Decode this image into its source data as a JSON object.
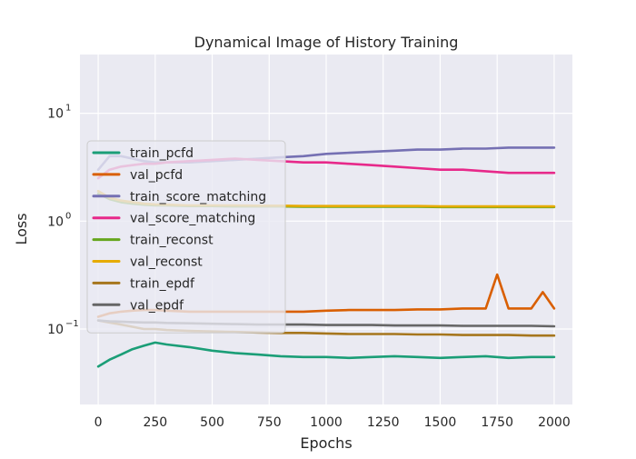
{
  "chart_data": {
    "type": "line",
    "title": "Dynamical Image of History Training",
    "xlabel": "Epochs",
    "ylabel": "Loss",
    "y_scale": "log",
    "xlim": [
      -80,
      2080
    ],
    "ylim": [
      0.02,
      35
    ],
    "grid": true,
    "legend_position": "left",
    "x_ticks": [
      0,
      250,
      500,
      750,
      1000,
      1250,
      1500,
      1750,
      2000
    ],
    "x_tick_labels": [
      "0",
      "250",
      "500",
      "750",
      "1000",
      "1250",
      "1500",
      "1750",
      "2000"
    ],
    "y_ticks": [
      0.1,
      1,
      10
    ],
    "y_tick_labels": [
      {
        "base": "10",
        "exp": "−1"
      },
      {
        "base": "10",
        "exp": "0"
      },
      {
        "base": "10",
        "exp": "1"
      }
    ],
    "series": [
      {
        "name": "train_pcfd",
        "color": "#1b9e77",
        "x": [
          0,
          50,
          100,
          150,
          200,
          250,
          300,
          400,
          500,
          600,
          700,
          800,
          900,
          1000,
          1100,
          1200,
          1300,
          1400,
          1500,
          1600,
          1700,
          1800,
          1900,
          2000
        ],
        "values": [
          0.045,
          0.052,
          0.058,
          0.065,
          0.07,
          0.075,
          0.072,
          0.068,
          0.063,
          0.06,
          0.058,
          0.056,
          0.055,
          0.055,
          0.054,
          0.055,
          0.056,
          0.055,
          0.054,
          0.055,
          0.056,
          0.054,
          0.055,
          0.055
        ]
      },
      {
        "name": "val_pcfd",
        "color": "#d95f02",
        "x": [
          0,
          50,
          100,
          150,
          200,
          250,
          300,
          400,
          500,
          600,
          700,
          800,
          900,
          1000,
          1100,
          1200,
          1300,
          1400,
          1500,
          1600,
          1700,
          1750,
          1800,
          1900,
          1950,
          2000
        ],
        "values": [
          0.13,
          0.14,
          0.145,
          0.148,
          0.15,
          0.15,
          0.148,
          0.145,
          0.145,
          0.145,
          0.145,
          0.145,
          0.145,
          0.148,
          0.15,
          0.15,
          0.15,
          0.152,
          0.152,
          0.155,
          0.155,
          0.32,
          0.155,
          0.155,
          0.22,
          0.155
        ]
      },
      {
        "name": "train_score_matching",
        "color": "#7570b3",
        "x": [
          0,
          50,
          100,
          150,
          200,
          250,
          300,
          400,
          500,
          600,
          700,
          800,
          900,
          1000,
          1100,
          1200,
          1300,
          1400,
          1500,
          1600,
          1700,
          1800,
          1900,
          2000
        ],
        "values": [
          3.0,
          4.0,
          4.0,
          3.8,
          3.6,
          3.5,
          3.5,
          3.5,
          3.6,
          3.7,
          3.8,
          3.9,
          4.0,
          4.2,
          4.3,
          4.4,
          4.5,
          4.6,
          4.6,
          4.7,
          4.7,
          4.8,
          4.8,
          4.8
        ]
      },
      {
        "name": "val_score_matching",
        "color": "#e7298a",
        "x": [
          0,
          50,
          100,
          150,
          200,
          250,
          300,
          400,
          500,
          600,
          700,
          800,
          900,
          1000,
          1100,
          1200,
          1300,
          1400,
          1500,
          1600,
          1700,
          1800,
          1900,
          2000
        ],
        "values": [
          2.5,
          3.0,
          3.2,
          3.3,
          3.4,
          3.4,
          3.5,
          3.6,
          3.7,
          3.8,
          3.7,
          3.6,
          3.5,
          3.5,
          3.4,
          3.3,
          3.2,
          3.1,
          3.0,
          3.0,
          2.9,
          2.8,
          2.8,
          2.8
        ]
      },
      {
        "name": "train_reconst",
        "color": "#66a61e",
        "x": [
          0,
          50,
          100,
          150,
          200,
          250,
          300,
          400,
          500,
          600,
          700,
          800,
          900,
          1000,
          1100,
          1200,
          1300,
          1400,
          1500,
          1600,
          1700,
          1800,
          1900,
          2000
        ],
        "values": [
          1.8,
          1.6,
          1.5,
          1.45,
          1.42,
          1.4,
          1.4,
          1.38,
          1.38,
          1.37,
          1.37,
          1.37,
          1.36,
          1.36,
          1.36,
          1.36,
          1.36,
          1.36,
          1.35,
          1.35,
          1.35,
          1.35,
          1.35,
          1.35
        ]
      },
      {
        "name": "val_reconst",
        "color": "#e6ab02",
        "x": [
          0,
          50,
          100,
          150,
          200,
          250,
          300,
          400,
          500,
          600,
          700,
          800,
          900,
          1000,
          1100,
          1200,
          1300,
          1400,
          1500,
          1600,
          1700,
          1800,
          1900,
          2000
        ],
        "values": [
          1.9,
          1.65,
          1.55,
          1.5,
          1.45,
          1.43,
          1.42,
          1.4,
          1.4,
          1.4,
          1.39,
          1.39,
          1.38,
          1.38,
          1.38,
          1.38,
          1.38,
          1.38,
          1.37,
          1.37,
          1.37,
          1.37,
          1.37,
          1.37
        ]
      },
      {
        "name": "train_epdf",
        "color": "#a6761d",
        "x": [
          0,
          50,
          100,
          150,
          200,
          250,
          300,
          400,
          500,
          600,
          700,
          800,
          900,
          1000,
          1100,
          1200,
          1300,
          1400,
          1500,
          1600,
          1700,
          1800,
          1900,
          2000
        ],
        "values": [
          0.12,
          0.115,
          0.11,
          0.105,
          0.1,
          0.1,
          0.098,
          0.096,
          0.095,
          0.094,
          0.093,
          0.092,
          0.092,
          0.091,
          0.09,
          0.09,
          0.09,
          0.089,
          0.089,
          0.088,
          0.088,
          0.088,
          0.087,
          0.087
        ]
      },
      {
        "name": "val_epdf",
        "color": "#666666",
        "x": [
          0,
          50,
          100,
          150,
          200,
          250,
          300,
          400,
          500,
          600,
          700,
          800,
          900,
          1000,
          1100,
          1200,
          1300,
          1400,
          1500,
          1600,
          1700,
          1800,
          1900,
          2000
        ],
        "values": [
          0.12,
          0.118,
          0.117,
          0.116,
          0.115,
          0.115,
          0.114,
          0.113,
          0.112,
          0.111,
          0.11,
          0.11,
          0.11,
          0.109,
          0.109,
          0.109,
          0.108,
          0.108,
          0.108,
          0.107,
          0.107,
          0.107,
          0.107,
          0.106
        ]
      }
    ]
  }
}
